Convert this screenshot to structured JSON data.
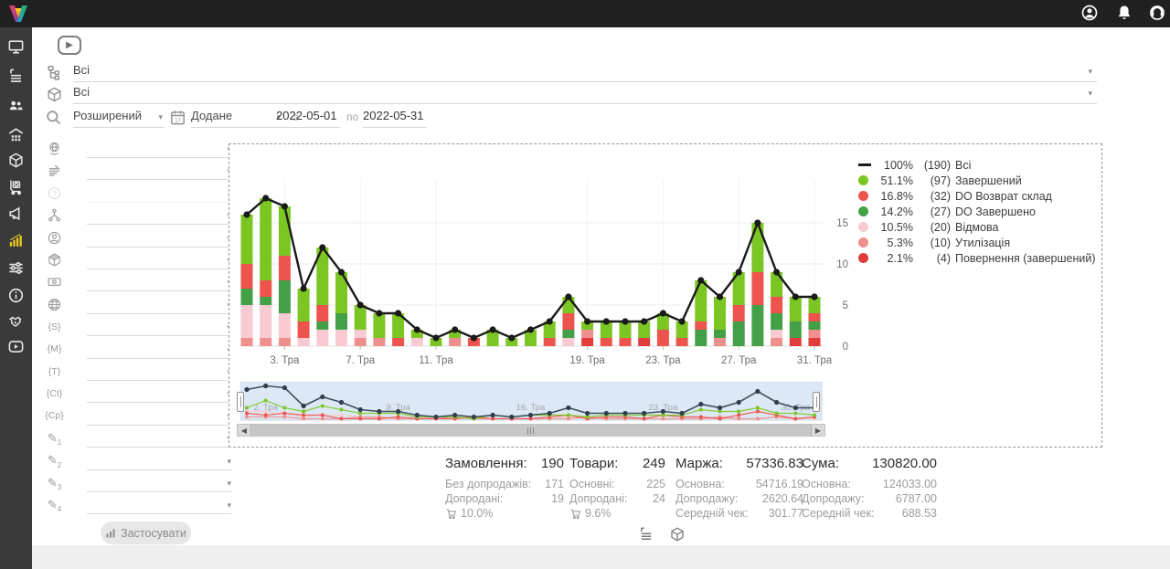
{
  "topbar": {
    "icons": [
      "user-icon",
      "bell-icon",
      "support-headset-icon"
    ]
  },
  "sidebar": {
    "icons": [
      "monitor-icon",
      "orders-list-icon",
      "customers-icon",
      "warehouse-icon",
      "products-box-icon",
      "purchases-trolley-icon",
      "marketing-megaphone-icon",
      "analytics-chart-icon",
      "settings-sliders-icon",
      "info-icon",
      "partners-handshake-icon",
      "video-tutorials-icon"
    ],
    "active": "analytics-chart-icon"
  },
  "filters": {
    "group1_value": "Всі",
    "group2_value": "Всі",
    "search_mode": "Розширений",
    "date_field": "Додане",
    "date_from_label": "з",
    "date_from": "2022-05-01",
    "date_to_label": "по",
    "date_to": "2022-05-31",
    "apply_label": "Застосувати",
    "rows": [
      {
        "icon": "globe-hand"
      },
      {
        "icon": "doc-lines"
      },
      {
        "icon": "question",
        "disabled": true
      },
      {
        "icon": "structure"
      },
      {
        "icon": "person"
      },
      {
        "icon": "box"
      },
      {
        "icon": "money"
      },
      {
        "icon": "globe"
      },
      {
        "glyph": "{S}"
      },
      {
        "glyph": "{M}"
      },
      {
        "glyph": "{T}"
      },
      {
        "glyph": "{Ct}"
      },
      {
        "glyph": "{Cp}"
      },
      {
        "glyph": "✎",
        "sub": "1"
      },
      {
        "glyph": "✎",
        "sub": "2"
      },
      {
        "glyph": "✎",
        "sub": "3"
      },
      {
        "glyph": "✎",
        "sub": "4"
      }
    ]
  },
  "legend": {
    "items": [
      {
        "symbol": "line",
        "color": "#1a1a1a",
        "pct": "100%",
        "count": "(190)",
        "label": "Всі"
      },
      {
        "symbol": "dot",
        "color": "#7cc623",
        "pct": "51.1%",
        "count": "(97)",
        "label": "Завершений"
      },
      {
        "symbol": "dot",
        "color": "#ee544e",
        "pct": "16.8%",
        "count": "(32)",
        "label": "DO Возврат склад"
      },
      {
        "symbol": "dot",
        "color": "#43a047",
        "pct": "14.2%",
        "count": "(27)",
        "label": "DO Завершено"
      },
      {
        "symbol": "dot",
        "color": "#f7cbd1",
        "pct": "10.5%",
        "count": "(20)",
        "label": "Відмова"
      },
      {
        "symbol": "dot",
        "color": "#f0908d",
        "pct": "5.3%",
        "count": "(10)",
        "label": "Утилізація"
      },
      {
        "symbol": "dot",
        "color": "#e23b3b",
        "pct": "2.1%",
        "count": "(4)",
        "label": "Повернення (завершений)"
      }
    ]
  },
  "chart_data": {
    "type": "bar",
    "subtype": "stacked bars + total line, daily orders for May 2022",
    "x_days": [
      1,
      2,
      3,
      4,
      5,
      6,
      7,
      8,
      9,
      10,
      11,
      12,
      13,
      14,
      15,
      16,
      17,
      18,
      19,
      20,
      21,
      22,
      23,
      24,
      25,
      26,
      27,
      28,
      29,
      30,
      31
    ],
    "x_tick_days": [
      3,
      7,
      11,
      19,
      23,
      27,
      31
    ],
    "x_tick_labels": [
      "3. Тра",
      "7. Тра",
      "11. Тра",
      "19. Тра",
      "23. Тра",
      "27. Тра",
      "31. Тра"
    ],
    "y_ticks": [
      0,
      5,
      10,
      15
    ],
    "ylim": [
      0,
      20
    ],
    "series": [
      {
        "name": "Всі",
        "type": "line",
        "color": "#1a1a1a",
        "mini_color": "#2e3e50",
        "total": 190,
        "values": [
          16,
          18,
          17,
          7,
          12,
          9,
          5,
          4,
          4,
          2,
          1,
          2,
          1,
          2,
          1,
          2,
          3,
          6,
          3,
          3,
          3,
          3,
          4,
          3,
          8,
          6,
          9,
          15,
          9,
          6,
          6
        ]
      },
      {
        "name": "Завершений",
        "type": "bar",
        "color": "#7cc623",
        "total": 97,
        "values": [
          6,
          10,
          6,
          4,
          7,
          5,
          3,
          3,
          3,
          1,
          1,
          1,
          0,
          2,
          1,
          2,
          2,
          2,
          1,
          2,
          2,
          2,
          2,
          2,
          5,
          4,
          4,
          6,
          3,
          3,
          2
        ]
      },
      {
        "name": "DO Возврат склад",
        "type": "bar",
        "color": "#ee544e",
        "total": 32,
        "values": [
          3,
          2,
          3,
          2,
          2,
          0,
          0,
          0,
          1,
          0,
          0,
          0,
          1,
          0,
          0,
          0,
          1,
          2,
          0,
          1,
          1,
          0,
          2,
          1,
          1,
          0,
          2,
          4,
          2,
          0,
          1
        ]
      },
      {
        "name": "DO Завершено",
        "type": "bar",
        "color": "#43a047",
        "total": 27,
        "values": [
          2,
          1,
          4,
          0,
          1,
          2,
          0,
          0,
          0,
          0,
          0,
          0,
          0,
          0,
          0,
          0,
          0,
          1,
          0,
          0,
          0,
          0,
          0,
          0,
          2,
          1,
          3,
          5,
          2,
          2,
          1
        ]
      },
      {
        "name": "Відмова",
        "type": "bar",
        "color": "#f7cbd1",
        "total": 20,
        "values": [
          4,
          4,
          3,
          1,
          2,
          2,
          1,
          0,
          0,
          1,
          0,
          0,
          0,
          0,
          0,
          0,
          0,
          1,
          0,
          0,
          0,
          0,
          0,
          0,
          0,
          0,
          0,
          0,
          1,
          0,
          0
        ]
      },
      {
        "name": "Утилізація",
        "type": "bar",
        "color": "#f0908d",
        "total": 10,
        "values": [
          1,
          1,
          1,
          0,
          0,
          0,
          1,
          1,
          0,
          0,
          0,
          1,
          0,
          0,
          0,
          0,
          0,
          0,
          1,
          0,
          0,
          0,
          0,
          0,
          0,
          1,
          0,
          0,
          1,
          0,
          1
        ]
      },
      {
        "name": "Повернення (завершений)",
        "type": "bar",
        "color": "#e23b3b",
        "total": 4,
        "values": [
          0,
          0,
          0,
          0,
          0,
          0,
          0,
          0,
          0,
          0,
          0,
          0,
          0,
          0,
          0,
          0,
          0,
          0,
          1,
          0,
          0,
          1,
          0,
          0,
          0,
          0,
          0,
          0,
          0,
          1,
          1
        ]
      }
    ],
    "stack_bottom_to_top": [
      "Повернення (завершений)",
      "Утилізація",
      "Відмова",
      "DO Завершено",
      "DO Возврат склад",
      "Завершений"
    ],
    "navigator": {
      "tick_days": [
        2,
        9,
        16,
        23,
        30
      ],
      "tick_labels": [
        "2. Тра",
        "9. Тра",
        "16. Тра",
        "23. Тра",
        "30. Тра"
      ]
    }
  },
  "summary": {
    "columns": [
      {
        "title": "Замовлення:",
        "value": "190",
        "rows": [
          [
            "Без допродажів:",
            "171"
          ],
          [
            "Допродані:",
            "19"
          ]
        ],
        "footer_icon": "cart-icon",
        "footer": "10.0%"
      },
      {
        "title": "Товари:",
        "value": "249",
        "rows": [
          [
            "Основні:",
            "225"
          ],
          [
            "Допродані:",
            "24"
          ]
        ],
        "footer_icon": "cart-icon",
        "footer": "9.6%"
      },
      {
        "title": "Маржа:",
        "value": "57336.83",
        "rows": [
          [
            "Основна:",
            "54716.19"
          ],
          [
            "Допродажу:",
            "2620.64"
          ],
          [
            "Середній чек:",
            "301.77"
          ]
        ]
      },
      {
        "title": "Сума:",
        "value": "130820.00",
        "rows": [
          [
            "Основна:",
            "124033.00"
          ],
          [
            "Допродажу:",
            "6787.00"
          ],
          [
            "Середній чек:",
            "688.53"
          ]
        ]
      }
    ]
  },
  "bottom_toggles": [
    "orders-list-icon",
    "products-box-icon"
  ]
}
